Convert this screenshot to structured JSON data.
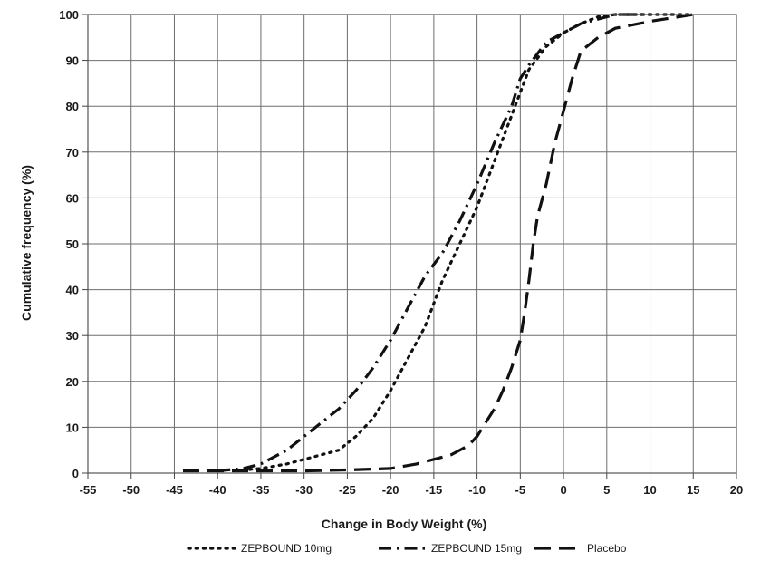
{
  "chart_data": {
    "type": "line",
    "title": "",
    "xlabel": "Change in Body Weight (%)",
    "ylabel": "Cumulative frequency (%)",
    "xlim": [
      -55,
      20
    ],
    "ylim": [
      0,
      100
    ],
    "grid": true,
    "legend_position": "bottom",
    "x_ticks": [
      -55,
      -50,
      -45,
      -40,
      -35,
      -30,
      -25,
      -20,
      -15,
      -10,
      -5,
      0,
      5,
      10,
      15,
      20
    ],
    "y_ticks": [
      0,
      10,
      20,
      30,
      40,
      50,
      60,
      70,
      80,
      90,
      100
    ],
    "series": [
      {
        "name": "ZEPBOUND 10mg",
        "line_style": "dotted",
        "color": "#111111",
        "points": [
          [
            -38,
            0.5
          ],
          [
            -35,
            1
          ],
          [
            -32,
            2
          ],
          [
            -30,
            3
          ],
          [
            -28,
            4
          ],
          [
            -26,
            5
          ],
          [
            -24,
            8
          ],
          [
            -22,
            12
          ],
          [
            -20,
            18
          ],
          [
            -18,
            25
          ],
          [
            -16,
            32
          ],
          [
            -14,
            42
          ],
          [
            -12,
            50
          ],
          [
            -10,
            58
          ],
          [
            -8,
            68
          ],
          [
            -6,
            78
          ],
          [
            -5,
            83
          ],
          [
            -4,
            88
          ],
          [
            -2,
            93
          ],
          [
            0,
            96
          ],
          [
            2,
            98
          ],
          [
            4,
            99.5
          ],
          [
            6,
            100
          ],
          [
            15,
            100
          ]
        ]
      },
      {
        "name": "ZEPBOUND 15mg",
        "line_style": "dash-dot",
        "color": "#111111",
        "points": [
          [
            -40,
            0.5
          ],
          [
            -37,
            1
          ],
          [
            -35,
            2
          ],
          [
            -32,
            5
          ],
          [
            -30,
            8
          ],
          [
            -28,
            11
          ],
          [
            -26,
            14
          ],
          [
            -24,
            18
          ],
          [
            -22,
            23
          ],
          [
            -20,
            29
          ],
          [
            -18,
            36
          ],
          [
            -16,
            43
          ],
          [
            -14,
            48
          ],
          [
            -12,
            55
          ],
          [
            -10,
            63
          ],
          [
            -8,
            72
          ],
          [
            -6,
            80
          ],
          [
            -5,
            86
          ],
          [
            -4,
            89
          ],
          [
            -2,
            94
          ],
          [
            0,
            96
          ],
          [
            2,
            98
          ],
          [
            4,
            99
          ],
          [
            6,
            100
          ],
          [
            10,
            100
          ]
        ]
      },
      {
        "name": "Placebo",
        "line_style": "dashed",
        "color": "#111111",
        "points": [
          [
            -44,
            0.5
          ],
          [
            -40,
            0.5
          ],
          [
            -35,
            0.5
          ],
          [
            -30,
            0.5
          ],
          [
            -25,
            0.7
          ],
          [
            -20,
            1
          ],
          [
            -17,
            2
          ],
          [
            -15,
            3
          ],
          [
            -13,
            4
          ],
          [
            -11,
            6
          ],
          [
            -10,
            8
          ],
          [
            -9,
            11
          ],
          [
            -8,
            14
          ],
          [
            -7,
            18
          ],
          [
            -6,
            23
          ],
          [
            -5,
            29
          ],
          [
            -4.5,
            35
          ],
          [
            -4,
            42
          ],
          [
            -3.5,
            50
          ],
          [
            -3,
            56
          ],
          [
            -2,
            63
          ],
          [
            -1,
            72
          ],
          [
            0,
            79
          ],
          [
            1,
            86
          ],
          [
            2,
            92
          ],
          [
            4,
            95
          ],
          [
            6,
            97
          ],
          [
            10,
            98.5
          ],
          [
            15,
            100
          ]
        ]
      }
    ]
  }
}
